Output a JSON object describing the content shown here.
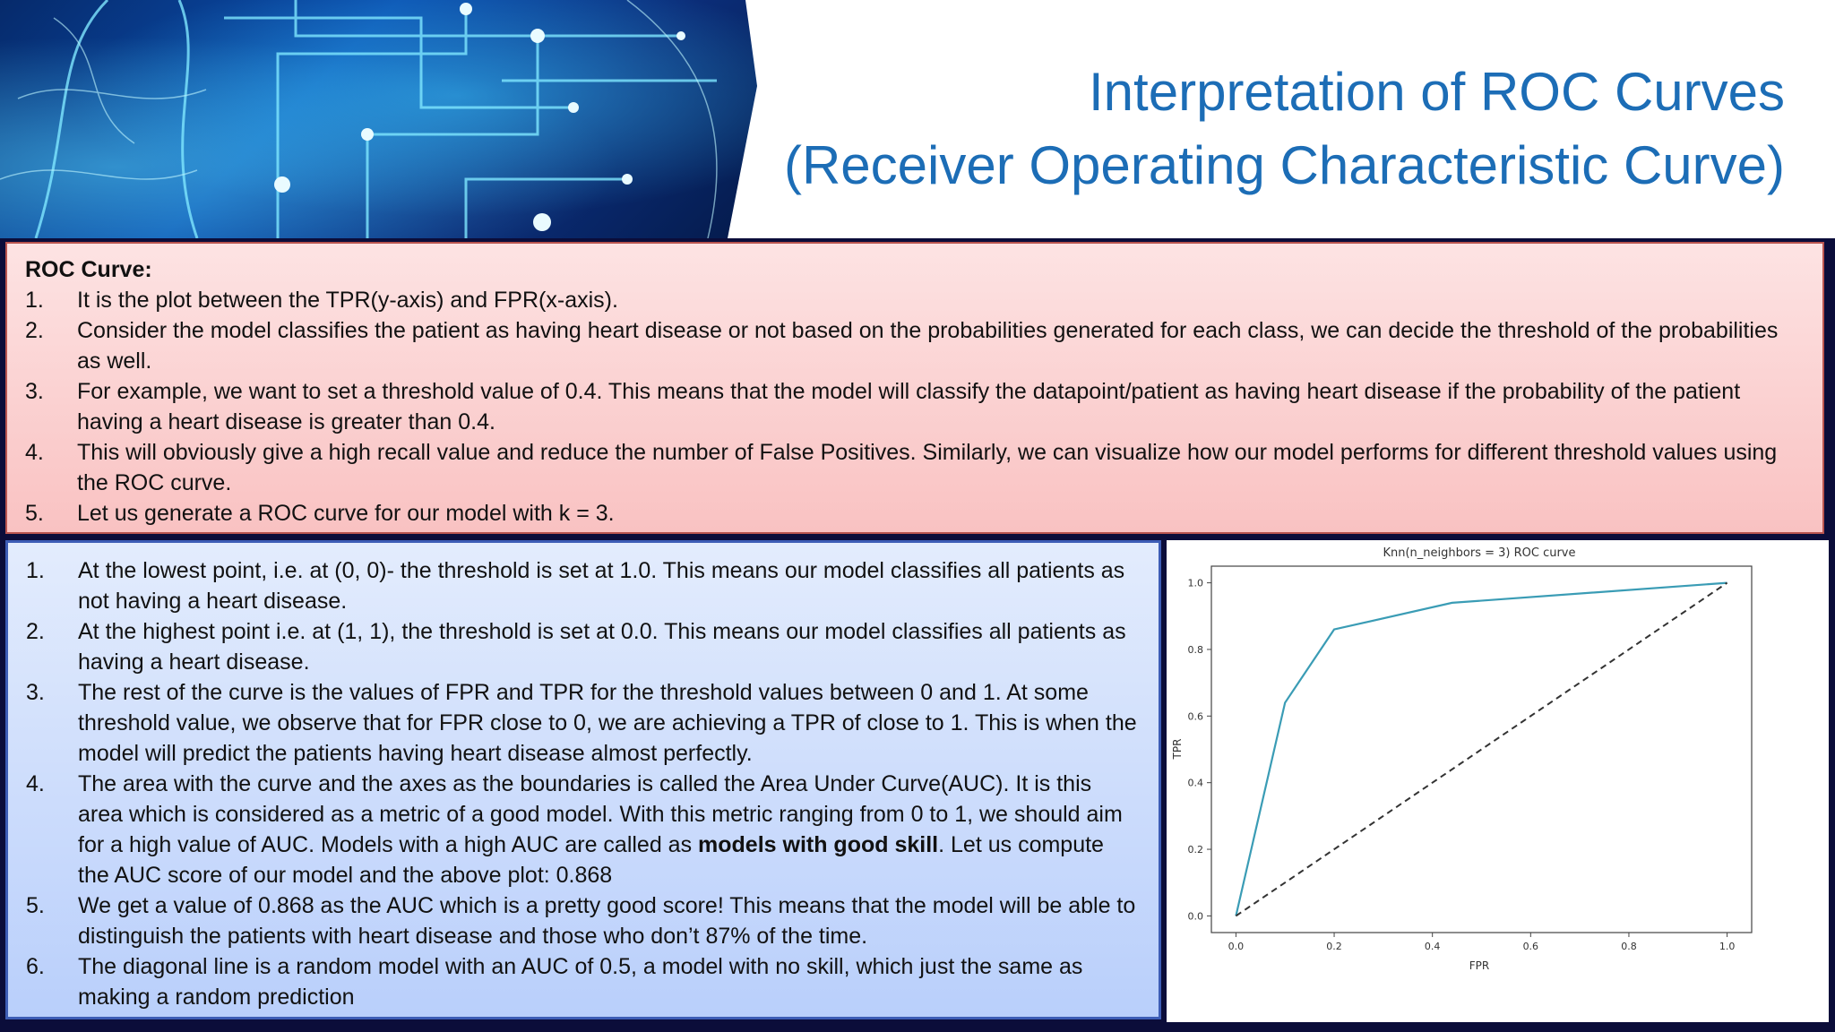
{
  "title": {
    "line1": "Interpretation of ROC Curves",
    "line2": "(Receiver Operating Characteristic Curve)"
  },
  "roc_panel": {
    "heading": "ROC Curve:",
    "items": [
      {
        "num": "1.",
        "text": "It is the plot between the TPR(y-axis) and FPR(x-axis)."
      },
      {
        "num": "2.",
        "text": "Consider the model classifies the patient as having heart disease or not based on the probabilities generated for each class, we can decide the threshold of the probabilities as well."
      },
      {
        "num": "3.",
        "text": "For example, we want to set a threshold value of 0.4. This means that the model will classify the datapoint/patient as having heart disease if the probability of the patient having a heart disease is greater than 0.4."
      },
      {
        "num": "4.",
        "text": "This will obviously give a high recall value and reduce the number of False Positives. Similarly, we can visualize how our model performs for different threshold values using the ROC curve."
      },
      {
        "num": "5.",
        "text": "Let us generate a ROC curve for our model with k = 3."
      }
    ]
  },
  "interpretation_panel": {
    "items": [
      {
        "num": "1.",
        "text": "At the lowest point, i.e. at (0, 0)- the threshold is set at 1.0. This means our model classifies all patients as not having a heart disease."
      },
      {
        "num": "2.",
        "text": "At the highest point i.e. at (1, 1), the threshold is set at 0.0. This means our model classifies all patients as having a heart disease."
      },
      {
        "num": "3.",
        "text": "The rest of the curve is the values of FPR and TPR for the threshold values between 0 and 1. At some threshold value, we observe that for FPR close to 0, we are achieving a TPR of close to 1. This is when the model will predict the patients having heart disease almost perfectly."
      },
      {
        "num": "4.",
        "text_before": "The area with the curve and the axes as the boundaries is called the Area Under Curve(AUC). It is this area which is considered as a metric of a good model. With this metric ranging from 0 to 1, we should aim for a high value of AUC. Models with a high AUC are called as ",
        "bold": "models with good skill",
        "text_after": ". Let us compute the AUC score of our model and the above plot: 0.868"
      },
      {
        "num": "5.",
        "text": "We get a value of 0.868 as the AUC which is a pretty good score!  This means that the model will be able to distinguish the patients with heart disease and those who don’t 87% of the time."
      },
      {
        "num": "6.",
        "text": "The diagonal line is a random model with an AUC of 0.5, a model with no skill, which just the same as making a random prediction"
      }
    ]
  },
  "chart_data": {
    "type": "line",
    "title": "Knn(n_neighbors = 3) ROC curve",
    "xlabel": "FPR",
    "ylabel": "TPR",
    "xlim": [
      -0.05,
      1.05
    ],
    "ylim": [
      -0.05,
      1.05
    ],
    "xticks": [
      "0.0",
      "0.2",
      "0.4",
      "0.6",
      "0.8",
      "1.0"
    ],
    "yticks": [
      "0.0",
      "0.2",
      "0.4",
      "0.6",
      "0.8",
      "1.0"
    ],
    "grid": false,
    "series": [
      {
        "style": "solid",
        "color": "#3a9cb5",
        "x": [
          0.0,
          0.1,
          0.2,
          0.44,
          1.0
        ],
        "y": [
          0.0,
          0.64,
          0.86,
          0.94,
          1.0
        ]
      },
      {
        "style": "dashed",
        "color": "#333333",
        "x": [
          0.0,
          1.0
        ],
        "y": [
          0.0,
          1.0
        ]
      }
    ]
  }
}
